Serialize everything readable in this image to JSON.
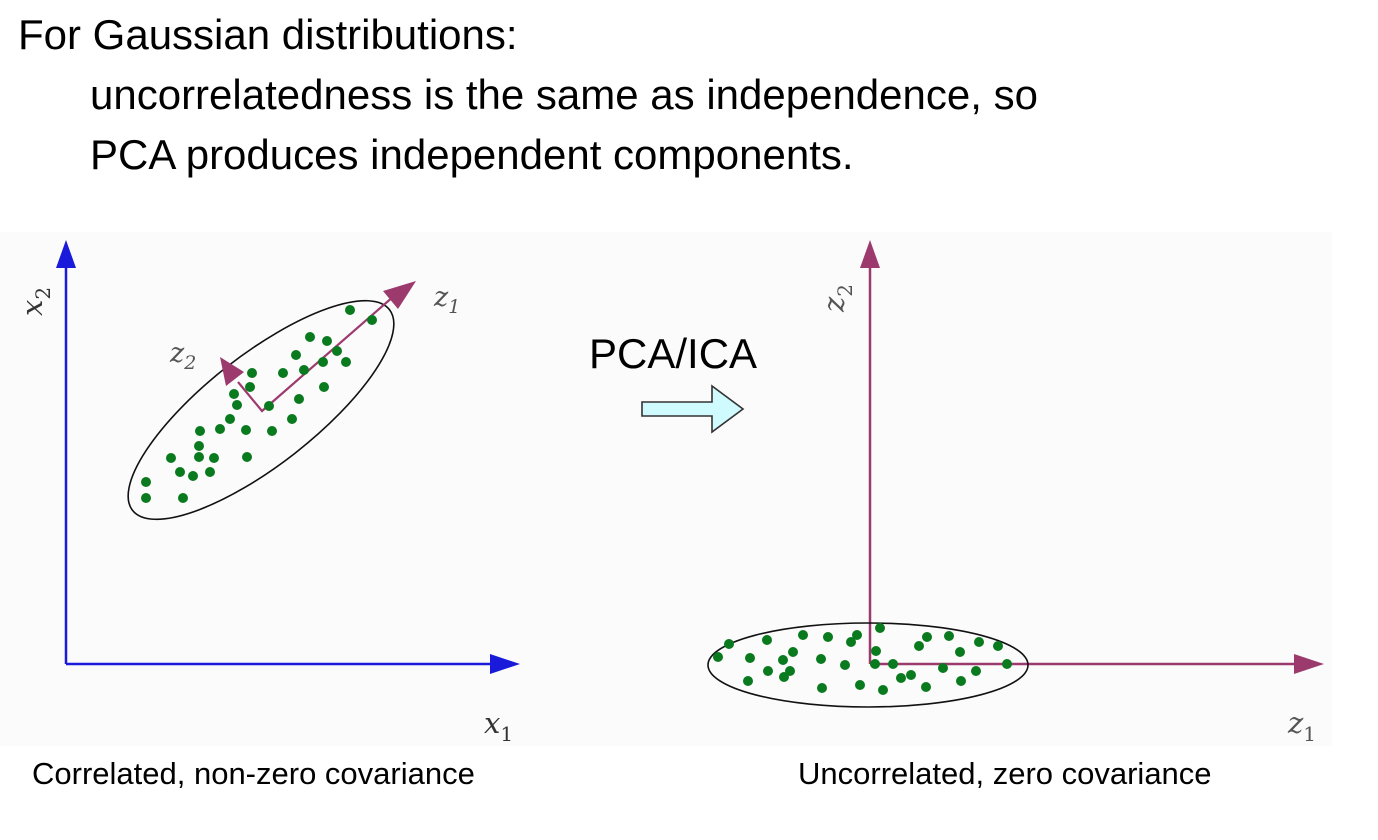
{
  "heading": {
    "line1": "For Gaussian distributions:",
    "line2": "uncorrelatedness is the same as independence, so",
    "line3": "PCA produces independent components."
  },
  "diagram": {
    "left": {
      "x_axis_label": "x",
      "x_axis_sub": "1",
      "y_axis_label": "x",
      "y_axis_sub": "2",
      "z1_label": "z",
      "z1_sub": "1",
      "z2_label": "z",
      "z2_sub": "2",
      "caption": "Correlated, non-zero covariance"
    },
    "transform_label": "PCA/ICA",
    "right": {
      "x_axis_label": "z",
      "x_axis_sub": "1",
      "y_axis_label": "z",
      "y_axis_sub": "2",
      "caption": "Uncorrelated, zero covariance"
    },
    "colors": {
      "left_axes": "#1a1adb",
      "pc_axes": "#9c3a6e",
      "points": "#0a7a1e",
      "transform_arrow_fill": "#cffbff"
    }
  }
}
